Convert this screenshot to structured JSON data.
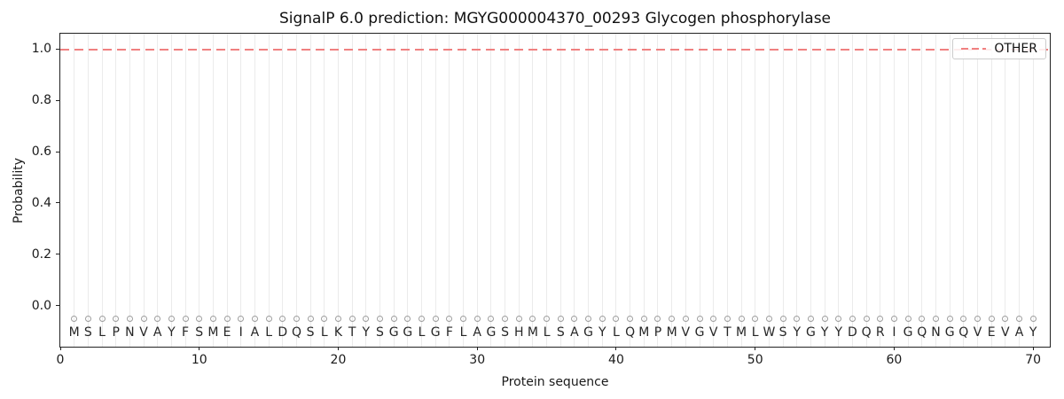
{
  "chart_data": {
    "type": "line",
    "title": "SignalP 6.0 prediction: MGYG000004370_00293 Glycogen phosphorylase",
    "xlabel": "Protein sequence",
    "ylabel": "Probability",
    "xlim": [
      0,
      71.2
    ],
    "ylim": [
      -0.16,
      1.06
    ],
    "x_ticks": [
      0,
      10,
      20,
      30,
      40,
      50,
      60,
      70
    ],
    "y_ticks": [
      "0.0",
      "0.2",
      "0.4",
      "0.6",
      "0.8",
      "1.0"
    ],
    "grid": {
      "vertical_line_per_residue": true,
      "horizontal": false,
      "color": "#ebebeb"
    },
    "sequence": "MSLPNVAYFSMEIALDQSLKTYSGGLGFLAGSHMLSAGYLQMPMVGVTMLWSYGYYDQRIGQNGQVEVAY",
    "sequence_length": 70,
    "residue_marker": {
      "shape": "open-circle",
      "color": "#9e9e9e",
      "y_value": -0.05
    },
    "sequence_label_y": -0.105,
    "legend": {
      "position": "upper-right",
      "items": [
        {
          "label": "OTHER",
          "color": "#f08080",
          "line_style": "dashed"
        }
      ]
    },
    "series": [
      {
        "name": "OTHER",
        "color": "#f08080",
        "style": "dashed",
        "x": [
          1,
          2,
          3,
          4,
          5,
          6,
          7,
          8,
          9,
          10,
          11,
          12,
          13,
          14,
          15,
          16,
          17,
          18,
          19,
          20,
          21,
          22,
          23,
          24,
          25,
          26,
          27,
          28,
          29,
          30,
          31,
          32,
          33,
          34,
          35,
          36,
          37,
          38,
          39,
          40,
          41,
          42,
          43,
          44,
          45,
          46,
          47,
          48,
          49,
          50,
          51,
          52,
          53,
          54,
          55,
          56,
          57,
          58,
          59,
          60,
          61,
          62,
          63,
          64,
          65,
          66,
          67,
          68,
          69,
          70
        ],
        "values": [
          0.999,
          0.999,
          0.999,
          0.999,
          0.999,
          0.999,
          0.999,
          0.999,
          0.999,
          0.999,
          0.999,
          0.999,
          0.999,
          0.999,
          0.999,
          0.999,
          0.999,
          0.999,
          0.999,
          0.999,
          0.999,
          0.999,
          0.999,
          0.999,
          0.999,
          0.999,
          0.999,
          0.999,
          0.999,
          0.999,
          0.999,
          0.999,
          0.999,
          0.999,
          0.999,
          0.999,
          0.999,
          0.999,
          0.999,
          0.999,
          0.999,
          0.999,
          0.999,
          0.999,
          0.999,
          0.999,
          0.999,
          0.999,
          0.999,
          0.999,
          0.999,
          0.999,
          0.999,
          0.999,
          0.999,
          0.999,
          0.999,
          0.999,
          0.999,
          0.999,
          0.999,
          0.999,
          0.999,
          0.999,
          0.999,
          0.999,
          0.999,
          0.999,
          0.999,
          0.999
        ]
      }
    ]
  },
  "colors": {
    "other_line": "#f08080",
    "grid": "#ebebeb",
    "marker": "#9e9e9e",
    "spine": "#222222",
    "background": "#ffffff"
  }
}
